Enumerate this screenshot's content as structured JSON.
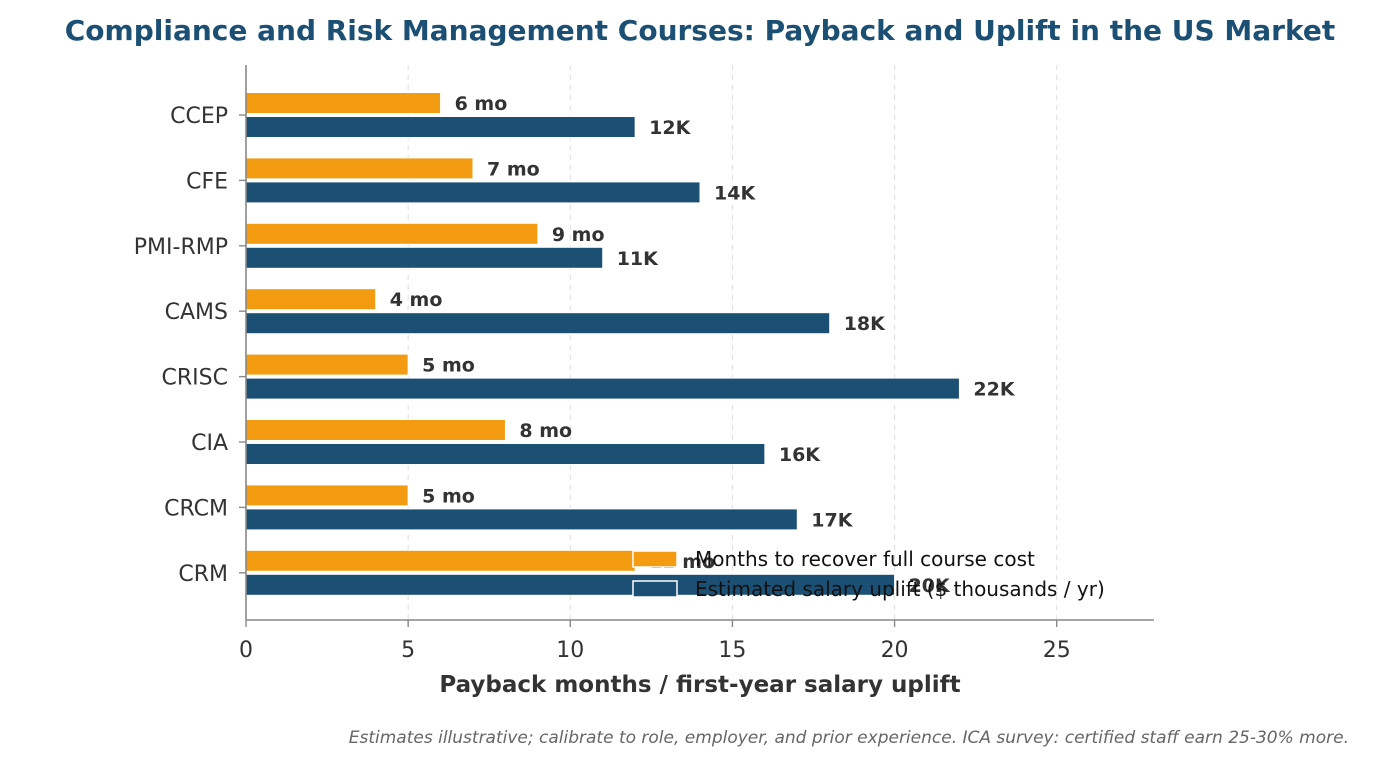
{
  "chart_data": {
    "type": "bar",
    "orientation": "horizontal",
    "title": "Compliance and Risk Management Courses: Payback and Uplift in the US Market",
    "xlabel": "Payback months / first-year salary uplift",
    "ylabel": "",
    "categories": [
      "CCEP",
      "CFE",
      "PMI-RMP",
      "CAMS",
      "CRISC",
      "CIA",
      "CRCM",
      "CRM"
    ],
    "series": [
      {
        "name": "Months to recover full course cost",
        "color": "#f39c12",
        "values": [
          6,
          7,
          9,
          4,
          5,
          8,
          5,
          12
        ],
        "labels": [
          "6 mo",
          "7 mo",
          "9 mo",
          "4 mo",
          "5 mo",
          "8 mo",
          "5 mo",
          "12 mo"
        ]
      },
      {
        "name": "Estimated salary uplift ($ thousands / yr)",
        "color": "#1c4f74",
        "values": [
          12,
          14,
          11,
          18,
          22,
          16,
          17,
          20
        ],
        "labels": [
          "12K",
          "14K",
          "11K",
          "18K",
          "22K",
          "16K",
          "17K",
          "20K"
        ]
      }
    ],
    "xlim": [
      0,
      28
    ],
    "xticks": [
      0,
      5,
      10,
      15,
      20,
      25
    ],
    "grid": true,
    "legend": "lower-right",
    "footnote": "Estimates illustrative; calibrate to role, employer, and prior experience. ICA survey: certified staff earn 25-30% more."
  }
}
